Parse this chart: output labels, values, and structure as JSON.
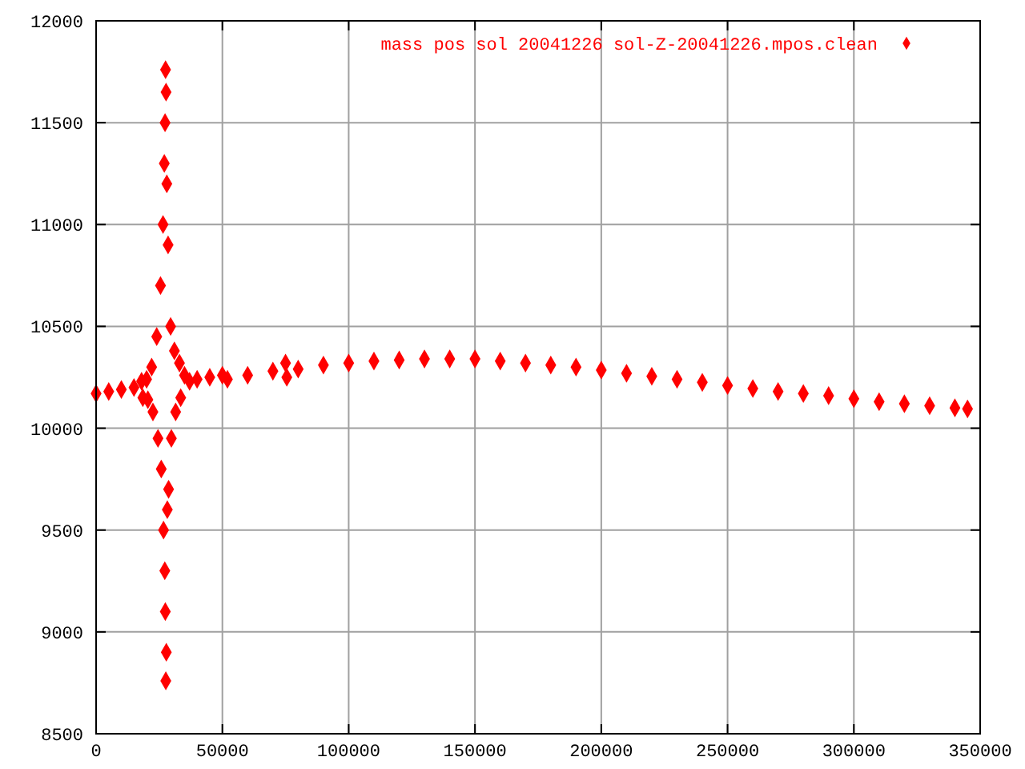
{
  "chart_data": {
    "type": "scatter",
    "marker": "diamond",
    "grid": true,
    "legend": "top right",
    "xlim": [
      0,
      350000
    ],
    "xticks": [
      0,
      50000,
      100000,
      150000,
      200000,
      250000,
      300000,
      350000
    ],
    "ylim": [
      8500,
      12000
    ],
    "yticks": [
      8500,
      9000,
      9500,
      10000,
      10500,
      11000,
      11500,
      12000
    ],
    "series": [
      {
        "name": "mass pos sol 20041226 sol-Z-20041226.mpos.clean",
        "color": "#ff0000",
        "x": [
          0,
          5000,
          10000,
          15000,
          18000,
          18500,
          20000,
          20500,
          22000,
          22500,
          24000,
          24500,
          25500,
          25800,
          26500,
          26700,
          27000,
          27200,
          27300,
          27400,
          27500,
          27600,
          27700,
          27800,
          28000,
          28200,
          28500,
          28700,
          29500,
          29800,
          31000,
          31500,
          33000,
          33500,
          35000,
          37000,
          40000,
          45000,
          50000,
          52000,
          60000,
          70000,
          75000,
          75500,
          80000,
          90000,
          100000,
          110000,
          120000,
          130000,
          140000,
          150000,
          160000,
          170000,
          180000,
          190000,
          200000,
          210000,
          220000,
          230000,
          240000,
          250000,
          260000,
          270000,
          280000,
          290000,
          300000,
          310000,
          320000,
          330000,
          340000,
          345000
        ],
        "values": [
          10170,
          10180,
          10190,
          10200,
          10230,
          10150,
          10240,
          10140,
          10300,
          10080,
          10450,
          9950,
          10700,
          9800,
          11000,
          9500,
          11300,
          9300,
          11500,
          9100,
          11760,
          8760,
          11650,
          8900,
          11200,
          9600,
          10900,
          9700,
          10500,
          9950,
          10380,
          10080,
          10320,
          10150,
          10260,
          10230,
          10240,
          10250,
          10260,
          10240,
          10260,
          10280,
          10320,
          10250,
          10290,
          10310,
          10320,
          10330,
          10335,
          10340,
          10340,
          10340,
          10330,
          10320,
          10310,
          10300,
          10285,
          10270,
          10255,
          10240,
          10225,
          10210,
          10195,
          10180,
          10170,
          10160,
          10145,
          10130,
          10120,
          10110,
          10100,
          10095
        ]
      }
    ]
  }
}
